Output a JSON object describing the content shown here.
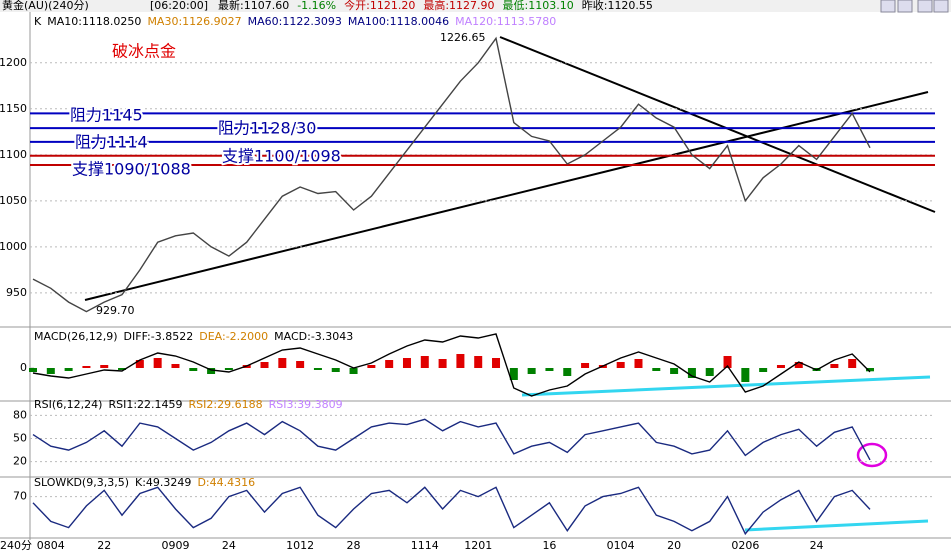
{
  "header": {
    "symbol": "黄金(AU)(240分)",
    "time": "[06:20:00]",
    "fields": [
      {
        "text": "最新:1107.60",
        "color": "#000"
      },
      {
        "text": "-1.16%",
        "color": "#008000"
      },
      {
        "text": "今开:1121.20",
        "color": "#c00000"
      },
      {
        "text": "最高:1127.90",
        "color": "#c00000"
      },
      {
        "text": "最低:1103.10",
        "color": "#008000"
      },
      {
        "text": "昨收:1120.55",
        "color": "#000"
      }
    ],
    "period_label": "240分"
  },
  "chart_data": [
    {
      "type": "line",
      "series": [
        {
          "name": "K",
          "color": "#444444",
          "values": [
            965,
            955,
            940,
            929.7,
            940,
            948,
            975,
            1005,
            1012,
            1015,
            1000,
            990,
            1005,
            1030,
            1055,
            1065,
            1058,
            1060,
            1040,
            1055,
            1080,
            1105,
            1130,
            1155,
            1180,
            1200,
            1226.65,
            1135,
            1120,
            1115,
            1090,
            1100,
            1115,
            1130,
            1155,
            1140,
            1130,
            1100,
            1085,
            1110,
            1050,
            1075,
            1090,
            1110,
            1095,
            1120,
            1145,
            1107.6
          ]
        }
      ],
      "legend": [
        {
          "text": "MA10:1118.0250",
          "color": "#000000"
        },
        {
          "text": "MA30:1126.9027",
          "color": "#d08000"
        },
        {
          "text": "MA60:1122.3093",
          "color": "#000080"
        },
        {
          "text": "MA100:1118.0046",
          "color": "#000080"
        },
        {
          "text": "MA120:1113.5780",
          "color": "#c080ff"
        }
      ],
      "ylim": [
        914,
        1253
      ],
      "yticks": [
        950,
        1000,
        1050,
        1100,
        1150,
        1200
      ],
      "grid": true,
      "levels": [
        {
          "value": 1145,
          "color": "#0000c0"
        },
        {
          "value": 1129,
          "color": "#0000c0"
        },
        {
          "value": 1114,
          "color": "#0000c0"
        },
        {
          "value": 1099,
          "color": "#c00000"
        },
        {
          "value": 1089,
          "color": "#c00000"
        }
      ],
      "annotations": [
        {
          "text": "破冰点金",
          "color": "#e00000"
        },
        {
          "text": "阻力1145",
          "color": "#0000a0"
        },
        {
          "text": "阻力1114",
          "color": "#0000a0"
        },
        {
          "text": "支撑1090/1088",
          "color": "#0000a0"
        },
        {
          "text": "阻力1128/30",
          "color": "#0000a0"
        },
        {
          "text": "支撑1100/1098",
          "color": "#0000a0"
        },
        {
          "text": "1226.65",
          "color": "#000"
        },
        {
          "text": "929.70",
          "color": "#000"
        }
      ]
    },
    {
      "type": "bar",
      "title": "MACD(26,12,9)",
      "legend": [
        {
          "text": "DIFF:-3.8522",
          "color": "#000000"
        },
        {
          "text": "DEA:-2.2000",
          "color": "#d08000"
        },
        {
          "text": "MACD:-3.3043",
          "color": "#000000"
        }
      ],
      "series": [
        {
          "color": "#e00000",
          "negative_color": "#008000",
          "values": [
            -4,
            -6,
            -3,
            2,
            3,
            -2,
            8,
            10,
            4,
            -3,
            -6,
            -2,
            3,
            6,
            10,
            7,
            -2,
            -4,
            -6,
            3,
            8,
            10,
            12,
            9,
            14,
            12,
            10,
            -12,
            -6,
            -3,
            -8,
            5,
            3,
            6,
            9,
            -3,
            -6,
            -10,
            -8,
            12,
            -14,
            -4,
            3,
            6,
            -3,
            4,
            9,
            -3.3043
          ]
        },
        {
          "color": "#000000",
          "values": [
            -5,
            -8,
            -10,
            -6,
            -2,
            -3,
            8,
            15,
            12,
            6,
            -2,
            -4,
            2,
            10,
            18,
            20,
            14,
            8,
            0,
            5,
            14,
            22,
            28,
            26,
            32,
            30,
            34,
            -20,
            -28,
            -22,
            -18,
            -6,
            2,
            10,
            16,
            10,
            4,
            -8,
            -14,
            2,
            -24,
            -18,
            -6,
            6,
            -2,
            8,
            14,
            -3.8522
          ]
        }
      ],
      "ylim": [
        -36,
        36
      ],
      "yticks": [
        0
      ]
    },
    {
      "type": "line",
      "title": "RSI(6,12,24)",
      "legend": [
        {
          "text": "RSI1:22.1459",
          "color": "#000000"
        },
        {
          "text": "RSI2:29.6188",
          "color": "#d08000"
        },
        {
          "text": "RSI3:39.3809",
          "color": "#c080ff"
        }
      ],
      "series": [
        {
          "color": "#1a2a80",
          "values": [
            55,
            40,
            35,
            45,
            60,
            40,
            70,
            65,
            50,
            35,
            45,
            60,
            70,
            55,
            72,
            60,
            40,
            35,
            50,
            65,
            70,
            68,
            75,
            60,
            72,
            65,
            70,
            30,
            40,
            45,
            32,
            55,
            60,
            65,
            70,
            45,
            40,
            30,
            35,
            60,
            28,
            45,
            55,
            62,
            40,
            58,
            65,
            22.1459
          ]
        }
      ],
      "ylim": [
        0,
        100
      ],
      "yticks": [
        20,
        50,
        80
      ],
      "grid": true
    },
    {
      "type": "line",
      "title": "SLOWKD(9,3,3,5)",
      "legend": [
        {
          "text": "K:49.3249",
          "color": "#000000"
        },
        {
          "text": "D:44.4316",
          "color": "#d08000"
        }
      ],
      "series": [
        {
          "color": "#1a2a80",
          "values": [
            60,
            30,
            20,
            55,
            80,
            40,
            75,
            85,
            50,
            20,
            35,
            70,
            80,
            45,
            75,
            85,
            40,
            20,
            50,
            75,
            80,
            60,
            85,
            50,
            80,
            70,
            85,
            20,
            40,
            60,
            15,
            55,
            70,
            75,
            85,
            40,
            30,
            15,
            30,
            70,
            10,
            45,
            65,
            80,
            30,
            70,
            80,
            49.3249
          ]
        }
      ],
      "ylim": [
        0,
        100
      ],
      "yticks": [
        70
      ],
      "grid": true,
      "categories": [
        null,
        "0804",
        null,
        null,
        "22",
        null,
        null,
        null,
        "0909",
        null,
        null,
        "24",
        null,
        null,
        null,
        "1012",
        null,
        null,
        "28",
        null,
        null,
        null,
        "1114",
        null,
        null,
        "1201",
        null,
        null,
        null,
        "16",
        null,
        null,
        null,
        "0104",
        null,
        null,
        "20",
        null,
        null,
        null,
        "0206",
        null,
        null,
        null,
        "24",
        null,
        null,
        null
      ]
    }
  ]
}
